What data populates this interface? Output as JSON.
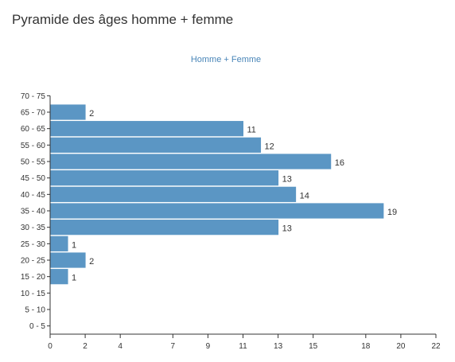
{
  "page": {
    "title": "Pyramide des âges homme + femme"
  },
  "chart_data": {
    "type": "bar",
    "orientation": "horizontal",
    "title": "Homme + Femme",
    "categories": [
      "0 - 5",
      "5 - 10",
      "10 - 15",
      "15 - 20",
      "20 - 25",
      "25 - 30",
      "30 - 35",
      "35 - 40",
      "40 - 45",
      "45 - 50",
      "50 - 55",
      "55 - 60",
      "60 - 65",
      "65 - 70",
      "70 - 75"
    ],
    "values": [
      0,
      0,
      0,
      1,
      2,
      1,
      13,
      19,
      14,
      13,
      16,
      12,
      11,
      2,
      0
    ],
    "xlim": [
      0,
      22
    ],
    "x_ticks": [
      0,
      2,
      4,
      7,
      9,
      11,
      13,
      15,
      18,
      20,
      22
    ],
    "x_tick_labels": [
      "0",
      "2",
      "4",
      "7",
      "9",
      "11",
      "13",
      "15",
      "18",
      "20",
      "22"
    ],
    "grid": false,
    "colors": {
      "bar": "#5b96c4",
      "title": "#4a86b8"
    }
  }
}
